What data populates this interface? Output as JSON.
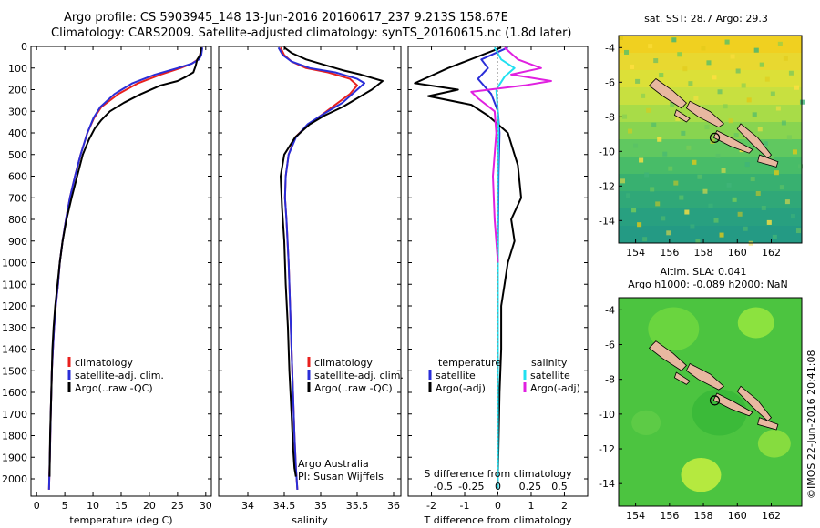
{
  "header": {
    "line1": "Argo profile: CS 5903945_148 13-Jun-2016 20160617_237 9.213S 158.67E",
    "line2": "Climatology: CARS2009. Satellite-adjusted climatology: synTS_20160615.nc (1.8d later)"
  },
  "colors": {
    "clim": "#e8201e",
    "sat": "#2a2ed8",
    "argo": "#000000",
    "sat_s": "#20e0f0",
    "argo_s": "#e020e0",
    "land": "#e8b8a0"
  },
  "chart_data": [
    {
      "type": "line",
      "id": "temperature",
      "title": "",
      "xlabel": "temperature (deg C)",
      "ylabel": "",
      "xlim": [
        -1,
        31
      ],
      "ylim": [
        2080,
        0
      ],
      "xticks": [
        0,
        5,
        10,
        15,
        20,
        25,
        30
      ],
      "yticks": [
        0,
        100,
        200,
        300,
        400,
        500,
        600,
        700,
        800,
        900,
        1000,
        1100,
        1200,
        1300,
        1400,
        1500,
        1600,
        1700,
        1800,
        1900,
        2000
      ],
      "legend": [
        "climatology",
        "satellite-adj. clim.",
        "Argo(..raw -QC)"
      ],
      "series": [
        {
          "name": "climatology",
          "color": "clim",
          "x": [
            29.2,
            29.0,
            28.6,
            27.5,
            25.5,
            22,
            18,
            14.5,
            11.5,
            10.2,
            9,
            7.8,
            6.8,
            5.9,
            5.2,
            4.6,
            4.1,
            3.8,
            3.4,
            3.1,
            2.9,
            2.7,
            2.5,
            2.35,
            2.2
          ],
          "y": [
            5,
            40,
            60,
            80,
            100,
            130,
            170,
            220,
            280,
            330,
            400,
            500,
            600,
            700,
            800,
            900,
            1000,
            1100,
            1200,
            1300,
            1400,
            1500,
            1700,
            1900,
            2050
          ]
        },
        {
          "name": "satellite-adj. clim.",
          "color": "sat",
          "x": [
            29.4,
            29.2,
            28.8,
            27.5,
            25,
            21,
            17,
            13.8,
            11.3,
            10.1,
            9,
            7.8,
            6.8,
            5.9,
            5.2,
            4.6,
            4.1,
            3.8,
            3.4,
            3.1,
            2.9,
            2.7,
            2.5,
            2.35,
            2.2
          ],
          "y": [
            5,
            40,
            60,
            80,
            100,
            130,
            170,
            220,
            280,
            330,
            400,
            500,
            600,
            700,
            800,
            900,
            1000,
            1100,
            1200,
            1300,
            1400,
            1500,
            1700,
            1900,
            2050
          ]
        },
        {
          "name": "Argo(..raw -QC)",
          "color": "argo",
          "x": [
            29.2,
            29,
            28.5,
            28.2,
            27.8,
            26.5,
            25,
            22,
            18.5,
            15.5,
            13,
            11.5,
            10.3,
            9.3,
            8.2,
            7.2,
            6.2,
            5.3,
            4.6,
            4.1,
            3.7,
            3.3,
            3.0,
            2.8,
            2.6,
            2.4,
            2.3
          ],
          "y": [
            5,
            40,
            60,
            90,
            120,
            140,
            160,
            180,
            220,
            260,
            300,
            340,
            380,
            430,
            500,
            600,
            700,
            800,
            900,
            1000,
            1100,
            1200,
            1300,
            1400,
            1600,
            1800,
            1990
          ]
        }
      ]
    },
    {
      "type": "line",
      "id": "salinity",
      "title": "",
      "xlabel": "salinity",
      "ylabel": "",
      "xlim": [
        33.6,
        36.1
      ],
      "ylim": [
        2080,
        0
      ],
      "xticks": [
        34,
        34.5,
        35,
        35.5,
        36
      ],
      "legend": [
        "climatology",
        "satellite-adj. clim.",
        "Argo(..raw -QC)"
      ],
      "annotations": [
        "Argo Australia",
        "PI: Susan Wijffels"
      ],
      "series": [
        {
          "name": "climatology",
          "color": "clim",
          "x": [
            34.45,
            34.5,
            34.6,
            34.8,
            35.1,
            35.4,
            35.5,
            35.4,
            35.2,
            35.0,
            34.8,
            34.65,
            34.56,
            34.52,
            34.51,
            34.53,
            34.56,
            34.58,
            34.6,
            34.62,
            34.64,
            34.66,
            34.68
          ],
          "y": [
            5,
            40,
            70,
            100,
            120,
            150,
            180,
            220,
            270,
            320,
            370,
            420,
            500,
            600,
            700,
            800,
            1000,
            1200,
            1400,
            1600,
            1800,
            1950,
            2050
          ]
        },
        {
          "name": "satellite-adj. clim.",
          "color": "sat",
          "x": [
            34.42,
            34.48,
            34.6,
            34.85,
            35.2,
            35.5,
            35.6,
            35.5,
            35.3,
            35.05,
            34.82,
            34.66,
            34.56,
            34.52,
            34.51,
            34.53,
            34.56,
            34.58,
            34.6,
            34.62,
            34.64,
            34.66,
            34.68
          ],
          "y": [
            5,
            40,
            70,
            100,
            120,
            150,
            170,
            200,
            260,
            310,
            360,
            420,
            500,
            600,
            700,
            800,
            1000,
            1200,
            1400,
            1600,
            1800,
            1950,
            2050
          ]
        },
        {
          "name": "Argo(..raw -QC)",
          "color": "argo",
          "x": [
            34.5,
            34.6,
            34.8,
            35.1,
            35.3,
            35.55,
            35.85,
            35.7,
            35.5,
            35.3,
            35.05,
            34.85,
            34.65,
            34.5,
            34.45,
            34.47,
            34.5,
            34.52,
            34.55,
            34.57,
            34.6,
            34.62,
            34.64,
            34.66
          ],
          "y": [
            5,
            30,
            60,
            90,
            110,
            130,
            160,
            200,
            240,
            280,
            320,
            360,
            420,
            500,
            600,
            750,
            900,
            1100,
            1300,
            1500,
            1700,
            1850,
            1950,
            1990
          ]
        }
      ]
    },
    {
      "type": "line",
      "id": "difference",
      "title": "S difference from climatology",
      "xlabel": "T difference from climatology",
      "ylabel": "",
      "xlim": [
        -2.7,
        2.7
      ],
      "ylim": [
        2080,
        0
      ],
      "xticks": [
        -2,
        -1,
        0,
        1,
        2
      ],
      "xticks_top_labels": [
        "-0.5",
        "-0.25",
        "0",
        "0.25",
        "0.5"
      ],
      "legend": [
        "temperature",
        "satellite",
        "Argo(-adj)",
        "salinity",
        "satellite",
        "Argo(-adj)"
      ],
      "series": [
        {
          "name": "temperature satellite",
          "color": "sat",
          "x": [
            0.3,
            -0.5,
            -0.3,
            -0.6,
            -0.2,
            0,
            0.05,
            0.02,
            0,
            0
          ],
          "y": [
            5,
            60,
            100,
            150,
            220,
            300,
            400,
            600,
            1000,
            2050
          ]
        },
        {
          "name": "temperature Argo(-adj)",
          "color": "argo",
          "x": [
            0.1,
            -1.5,
            -2.5,
            -1.2,
            -2.1,
            -0.8,
            -0.3,
            0.3,
            0.5,
            0.6,
            0.7,
            0.4,
            0.5,
            0.3,
            0.2,
            0.1,
            0.1,
            0.05,
            0
          ],
          "y": [
            5,
            100,
            170,
            200,
            230,
            270,
            320,
            400,
            500,
            550,
            700,
            800,
            900,
            1000,
            1100,
            1200,
            1400,
            1600,
            1990
          ]
        },
        {
          "name": "salinity satellite",
          "color": "sat_s",
          "x": [
            -0.1,
            0.1,
            0.5,
            0.2,
            -0.05,
            0,
            0.02,
            0,
            0,
            0
          ],
          "y": [
            5,
            60,
            100,
            140,
            200,
            300,
            400,
            600,
            1000,
            2050
          ]
        },
        {
          "name": "salinity Argo(-adj)",
          "color": "argo_s",
          "x": [
            0.2,
            0.6,
            1.3,
            0.4,
            1.6,
            0.8,
            -0.8,
            -0.6,
            -0.1,
            -0.05,
            -0.15,
            -0.1,
            -0.05,
            0
          ],
          "y": [
            5,
            60,
            100,
            130,
            160,
            180,
            210,
            240,
            300,
            400,
            600,
            800,
            900,
            1000
          ]
        }
      ]
    }
  ],
  "maps": [
    {
      "id": "sst",
      "title": "sat. SST: 28.7 Argo: 29.3",
      "xticks": [
        154,
        156,
        158,
        160,
        162
      ],
      "yticks": [
        -4,
        -6,
        -8,
        -10,
        -12,
        -14
      ],
      "lon": 158.67,
      "lat": -9.213
    },
    {
      "id": "sla",
      "title": "Altim. SLA: 0.041",
      "title2": "Argo h1000: -0.089 h2000: NaN",
      "xticks": [
        154,
        156,
        158,
        160,
        162
      ],
      "yticks": [
        -4,
        -6,
        -8,
        -10,
        -12,
        -14
      ],
      "lon": 158.67,
      "lat": -9.213
    }
  ],
  "credit": "©IMOS 22-Jun-2016 20:41:08"
}
